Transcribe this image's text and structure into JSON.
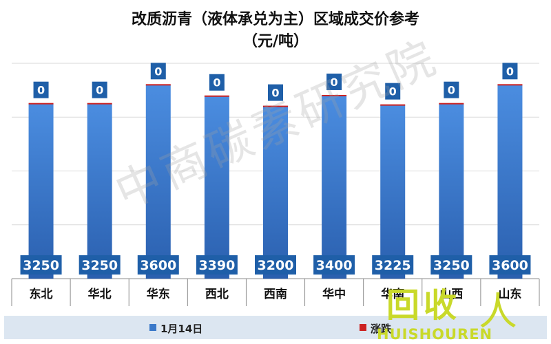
{
  "chart_data": {
    "type": "bar",
    "title": "改质沥青（液体承兑为主）区域成交价参考",
    "subtitle": "（元/吨）",
    "categories": [
      "东北",
      "华北",
      "华东",
      "西北",
      "西南",
      "华中",
      "华南",
      "山西",
      "山东"
    ],
    "series": [
      {
        "name": "1月14日",
        "values": [
          3250,
          3250,
          3600,
          3390,
          3200,
          3400,
          3225,
          3250,
          3600
        ],
        "color": "#3a78c9"
      },
      {
        "name": "涨跌",
        "values": [
          0,
          0,
          0,
          0,
          0,
          0,
          0,
          0,
          0
        ],
        "color": "#cc2222"
      }
    ],
    "ylim": [
      0,
      4000
    ],
    "grid": true,
    "legend": "bottom",
    "xlabel": "",
    "ylabel": ""
  },
  "watermark": "中商碳素研究院",
  "logo": {
    "cn": "回收",
    "en": "HUISHOUREN",
    "mark": "人"
  }
}
